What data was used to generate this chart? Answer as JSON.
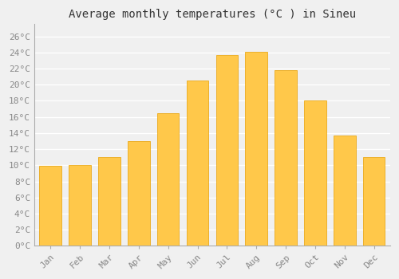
{
  "title": "Average monthly temperatures (°C ) in Sineu",
  "months": [
    "Jan",
    "Feb",
    "Mar",
    "Apr",
    "May",
    "Jun",
    "Jul",
    "Aug",
    "Sep",
    "Oct",
    "Nov",
    "Dec"
  ],
  "values": [
    9.9,
    10.0,
    11.0,
    13.0,
    16.5,
    20.5,
    23.7,
    24.1,
    21.8,
    18.0,
    13.7,
    11.0
  ],
  "bar_color_top": "#FFC84A",
  "bar_color_bottom": "#FFA020",
  "bar_edge_color": "#E8A000",
  "background_color": "#F0F0F0",
  "plot_bg_color": "#F0F0F0",
  "grid_color": "#FFFFFF",
  "ytick_labels": [
    "0°C",
    "2°C",
    "4°C",
    "6°C",
    "8°C",
    "10°C",
    "12°C",
    "14°C",
    "16°C",
    "18°C",
    "20°C",
    "22°C",
    "24°C",
    "26°C"
  ],
  "ytick_values": [
    0,
    2,
    4,
    6,
    8,
    10,
    12,
    14,
    16,
    18,
    20,
    22,
    24,
    26
  ],
  "ylim": [
    0,
    27.5
  ],
  "title_fontsize": 10,
  "tick_fontsize": 8,
  "tick_color": "#888888"
}
